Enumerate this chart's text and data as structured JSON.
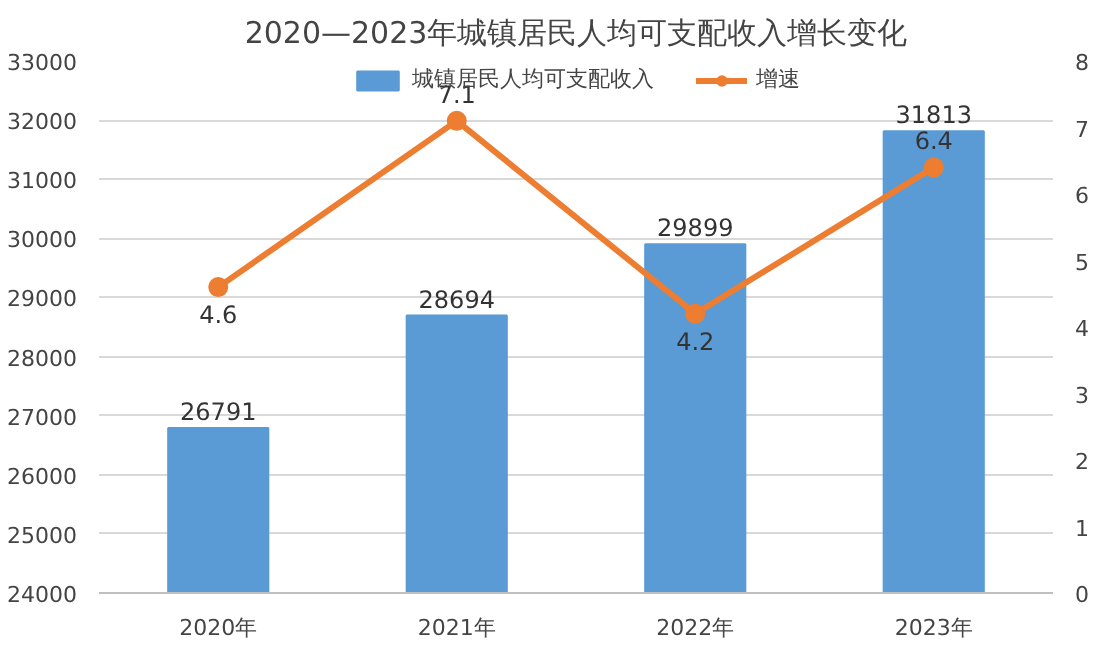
{
  "chart_data": {
    "type": "bar",
    "title": "2020—2023年城镇居民人均可支配收入增长变化",
    "categories": [
      "2020年",
      "2021年",
      "2022年",
      "2023年"
    ],
    "series": [
      {
        "name": "城镇居民人均可支配收入",
        "color": "#5b9bd5",
        "values": [
          26791,
          28694,
          29899,
          31813
        ]
      },
      {
        "name": "增速",
        "type": "line",
        "axis": "y2",
        "color": "#ed7d31",
        "marker": "circle",
        "values": [
          4.6,
          7.1,
          4.2,
          6.4
        ]
      }
    ],
    "ylim": [
      24000,
      33000
    ],
    "yticks": [
      24000,
      25000,
      26000,
      27000,
      28000,
      29000,
      30000,
      31000,
      32000,
      33000
    ],
    "y2lim": [
      0,
      8
    ],
    "y2ticks": [
      0,
      1,
      2,
      3,
      4,
      5,
      6,
      7,
      8
    ],
    "grid": "y",
    "legend": "top",
    "data_labels": true
  }
}
